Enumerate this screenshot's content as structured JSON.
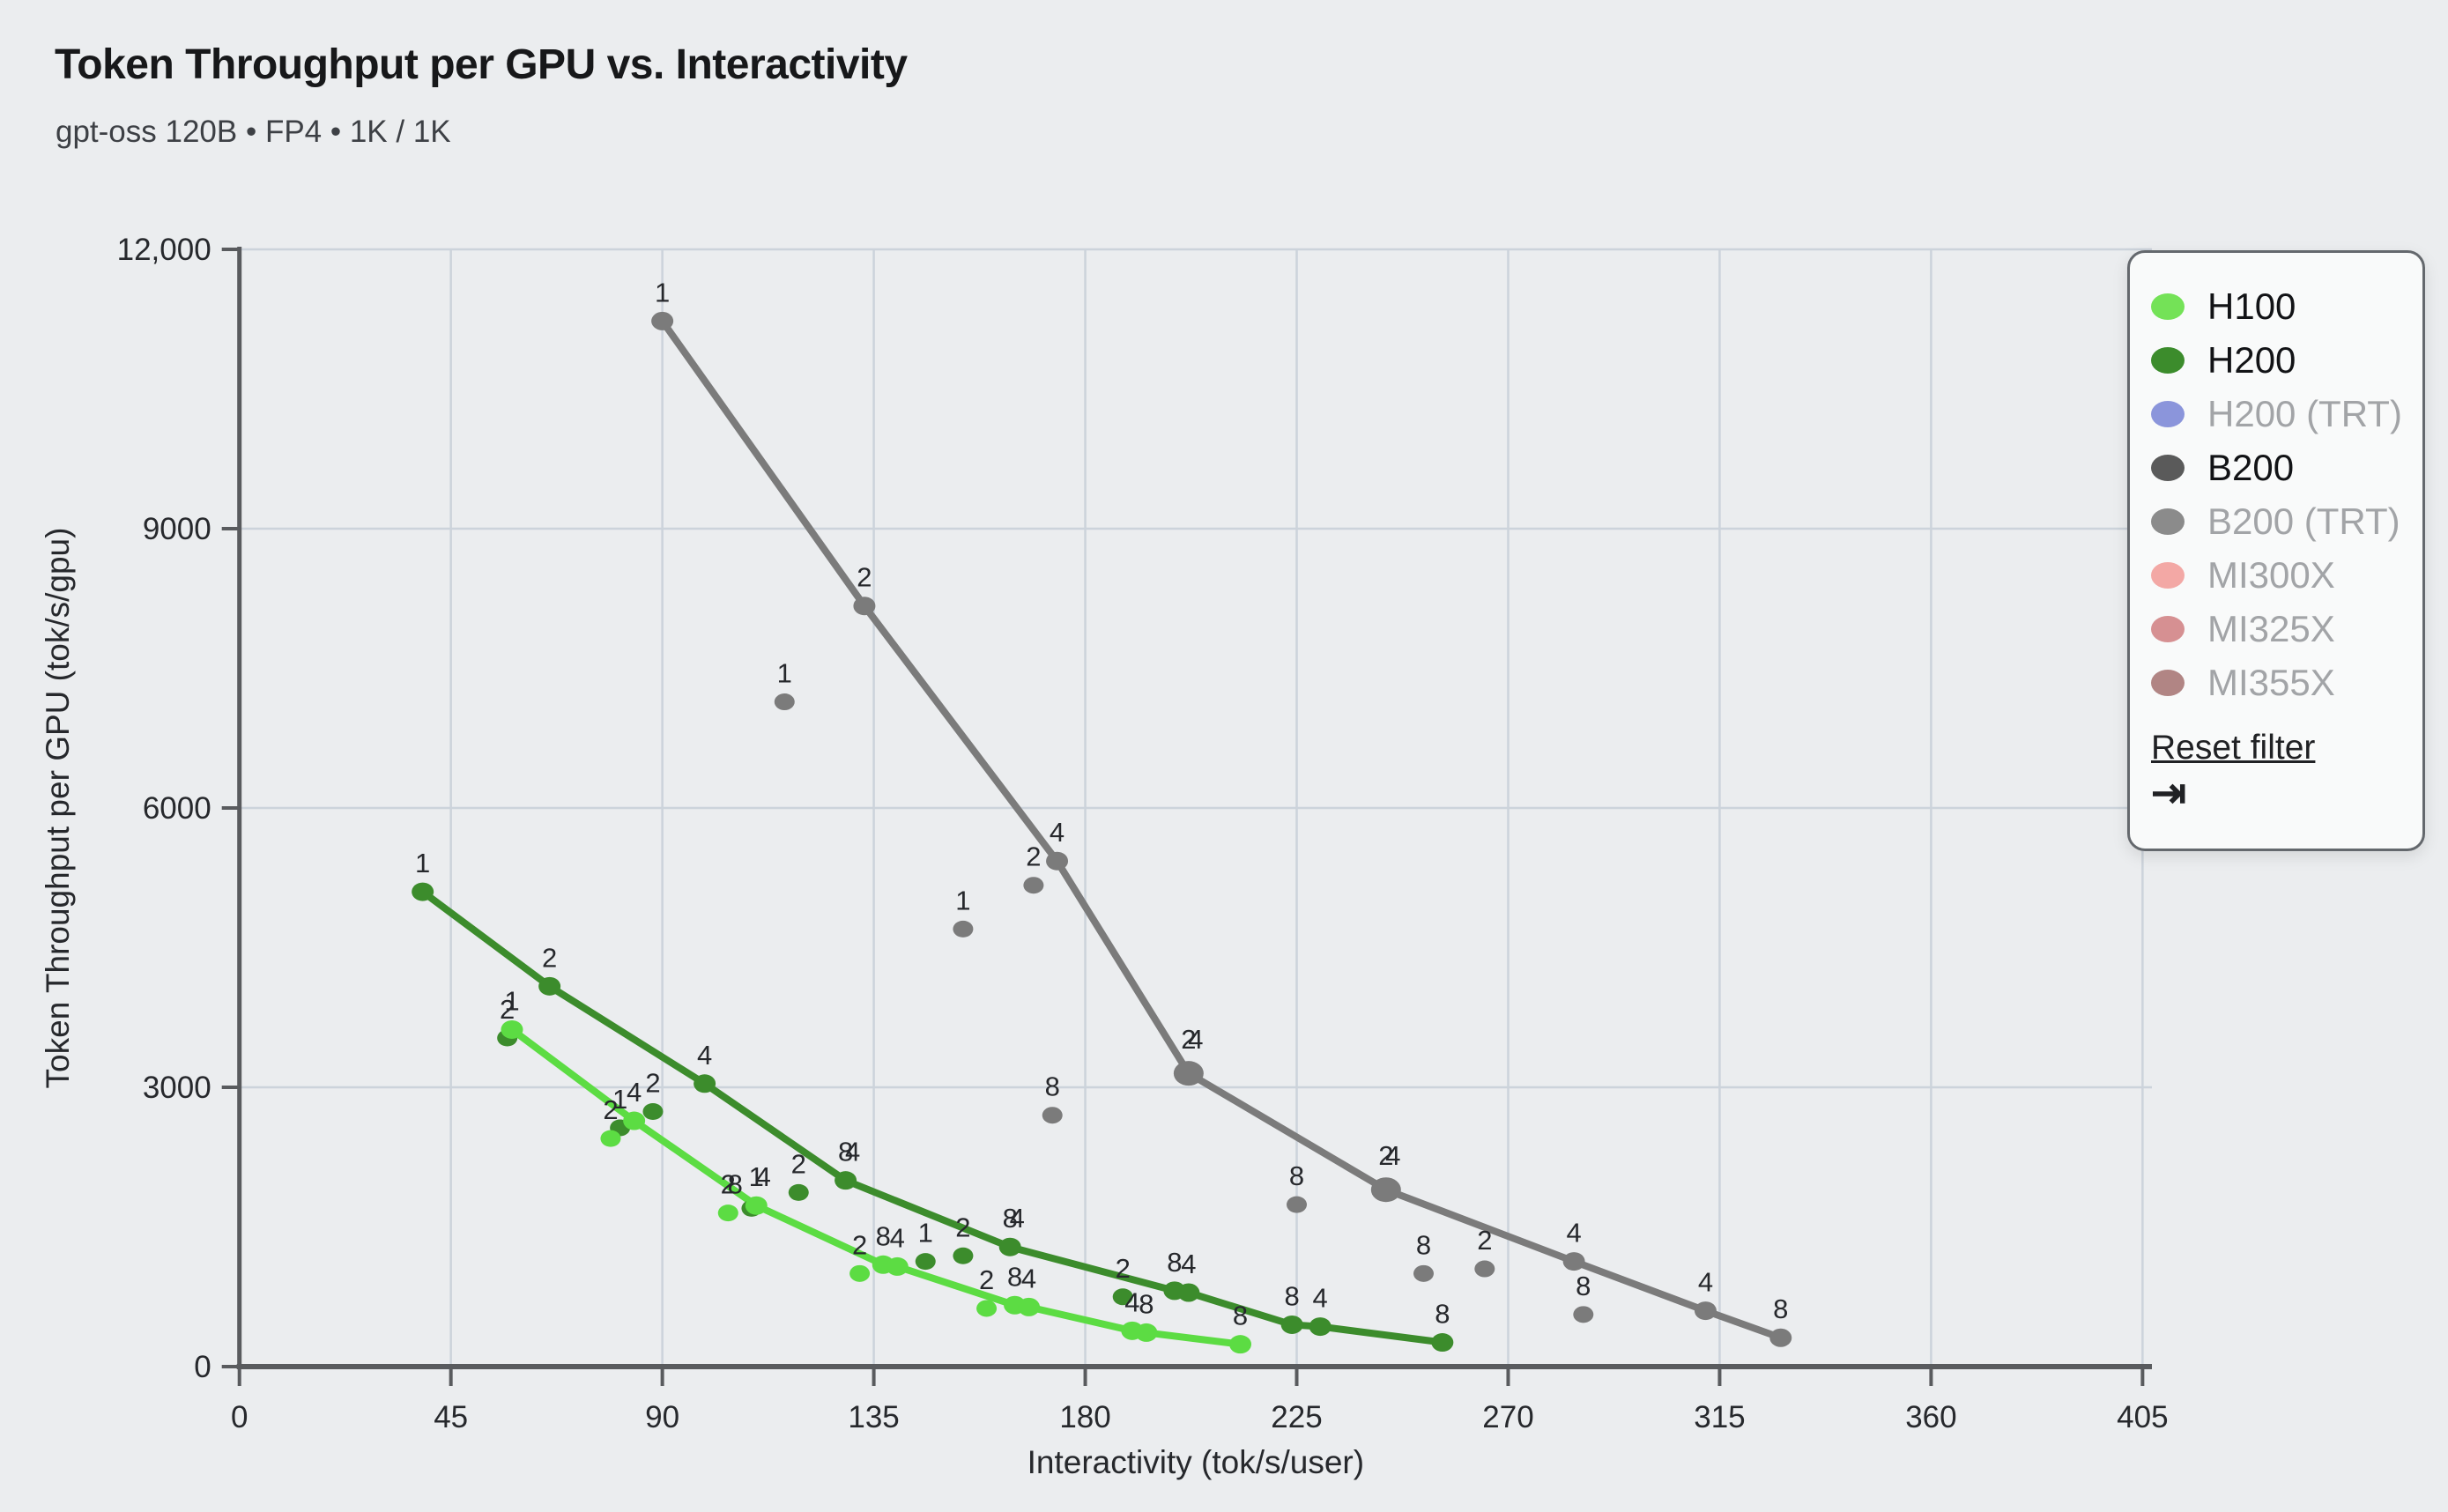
{
  "header": {
    "title": "Token Throughput per GPU vs. Interactivity",
    "subtitle": "gpt-oss 120B • FP4 • 1K / 1K"
  },
  "legend": {
    "items": [
      {
        "label": "H100",
        "color": "#74e257",
        "active": true
      },
      {
        "label": "H200",
        "color": "#3c8c2c",
        "active": true
      },
      {
        "label": "H200 (TRT)",
        "color": "#8b95db",
        "active": false
      },
      {
        "label": "B200",
        "color": "#5a5a5a",
        "active": true
      },
      {
        "label": "B200 (TRT)",
        "color": "#8b8b8b",
        "active": false
      },
      {
        "label": "MI300X",
        "color": "#f3a8a5",
        "active": false
      },
      {
        "label": "MI325X",
        "color": "#d69092",
        "active": false
      },
      {
        "label": "MI355X",
        "color": "#b18584",
        "active": false
      }
    ],
    "reset_label": "Reset filter",
    "collapse_icon": "⇥"
  },
  "chart_data": {
    "type": "scatter",
    "title": "Token Throughput per GPU vs. Interactivity",
    "xlabel": "Interactivity (tok/s/user)",
    "ylabel": "Token Throughput per GPU (tok/s/gpu)",
    "xlim": [
      0,
      418
    ],
    "ylim": [
      0,
      12000
    ],
    "x_ticks": [
      {
        "v": 0,
        "label": "0"
      },
      {
        "v": 45,
        "label": "45"
      },
      {
        "v": 90,
        "label": "90"
      },
      {
        "v": 135,
        "label": "135"
      },
      {
        "v": 180,
        "label": "180"
      },
      {
        "v": 225,
        "label": "225"
      },
      {
        "v": 270,
        "label": "270"
      },
      {
        "v": 315,
        "label": "315"
      },
      {
        "v": 360,
        "label": "360"
      },
      {
        "v": 405,
        "label": "405"
      }
    ],
    "y_ticks": [
      {
        "v": 0,
        "label": "0"
      },
      {
        "v": 3000,
        "label": "3000"
      },
      {
        "v": 6000,
        "label": "6000"
      },
      {
        "v": 9000,
        "label": "9000"
      },
      {
        "v": 12000,
        "label": "12,000"
      }
    ],
    "grid": true,
    "legend_position": "top-right",
    "point_label_meaning": "number of GPUs / parallelism of config",
    "series": [
      {
        "name": "B200",
        "color": "#7b7b7b",
        "line_points": [
          {
            "x": 90,
            "y": 11230,
            "labels": [
              "1"
            ]
          },
          {
            "x": 133,
            "y": 8170,
            "labels": [
              "2"
            ]
          },
          {
            "x": 174,
            "y": 5430,
            "labels": [
              "4"
            ]
          },
          {
            "x": 202,
            "y": 3150,
            "labels": [
              "2",
              "4"
            ],
            "big": true
          },
          {
            "x": 244,
            "y": 1900,
            "labels": [
              "2",
              "4"
            ],
            "big": true
          },
          {
            "x": 284,
            "y": 1130,
            "labels": [
              "4"
            ]
          },
          {
            "x": 312,
            "y": 600,
            "labels": [
              "4"
            ]
          },
          {
            "x": 328,
            "y": 310,
            "labels": [
              "8"
            ]
          }
        ],
        "scatter_points": [
          {
            "x": 116,
            "y": 7140,
            "labels": [
              "1"
            ]
          },
          {
            "x": 154,
            "y": 4700,
            "labels": [
              "1"
            ]
          },
          {
            "x": 169,
            "y": 5170,
            "labels": [
              "2"
            ]
          },
          {
            "x": 173,
            "y": 2700,
            "labels": [
              "8"
            ]
          },
          {
            "x": 225,
            "y": 1740,
            "labels": [
              "8"
            ]
          },
          {
            "x": 252,
            "y": 1000,
            "labels": [
              "8"
            ]
          },
          {
            "x": 265,
            "y": 1050,
            "labels": [
              "2"
            ]
          },
          {
            "x": 286,
            "y": 560,
            "labels": [
              "8"
            ]
          }
        ]
      },
      {
        "name": "H200",
        "color": "#3c8c2c",
        "line_points": [
          {
            "x": 39,
            "y": 5100,
            "labels": [
              "1"
            ]
          },
          {
            "x": 66,
            "y": 4085,
            "labels": [
              "2"
            ]
          },
          {
            "x": 99,
            "y": 3040,
            "labels": [
              "4"
            ]
          },
          {
            "x": 129,
            "y": 2000,
            "labels": [
              "8",
              "4"
            ]
          },
          {
            "x": 164,
            "y": 1285,
            "labels": [
              "8",
              "4"
            ]
          },
          {
            "x": 199,
            "y": 815,
            "labels": [
              "8"
            ]
          },
          {
            "x": 202,
            "y": 795,
            "labels": [
              "4"
            ]
          },
          {
            "x": 224,
            "y": 450,
            "labels": [
              "8"
            ]
          },
          {
            "x": 230,
            "y": 430,
            "labels": [
              "4"
            ]
          },
          {
            "x": 256,
            "y": 260,
            "labels": [
              "8"
            ]
          }
        ],
        "scatter_points": [
          {
            "x": 57,
            "y": 3530,
            "labels": [
              "2"
            ]
          },
          {
            "x": 81,
            "y": 2565,
            "labels": [
              "1"
            ]
          },
          {
            "x": 88,
            "y": 2740,
            "labels": [
              "2"
            ]
          },
          {
            "x": 109,
            "y": 1700,
            "labels": []
          },
          {
            "x": 119,
            "y": 1870,
            "labels": [
              "2"
            ]
          },
          {
            "x": 146,
            "y": 1130,
            "labels": [
              "1"
            ]
          },
          {
            "x": 154,
            "y": 1190,
            "labels": [
              "2"
            ]
          },
          {
            "x": 188,
            "y": 750,
            "labels": [
              "2"
            ]
          }
        ]
      },
      {
        "name": "H100",
        "color": "#5cdc43",
        "line_points": [
          {
            "x": 58,
            "y": 3620,
            "labels": [
              "1"
            ]
          },
          {
            "x": 84,
            "y": 2640,
            "labels": [
              "4"
            ]
          },
          {
            "x": 110,
            "y": 1730,
            "labels": [
              "1",
              "4"
            ]
          },
          {
            "x": 137,
            "y": 1095,
            "labels": [
              "8"
            ]
          },
          {
            "x": 140,
            "y": 1075,
            "labels": [
              "4"
            ]
          },
          {
            "x": 165,
            "y": 660,
            "labels": [
              "8"
            ]
          },
          {
            "x": 168,
            "y": 640,
            "labels": [
              "4"
            ]
          },
          {
            "x": 190,
            "y": 385,
            "labels": [
              "4"
            ]
          },
          {
            "x": 193,
            "y": 365,
            "labels": [
              "8"
            ]
          },
          {
            "x": 213,
            "y": 240,
            "labels": [
              "8"
            ]
          }
        ],
        "scatter_points": [
          {
            "x": 79,
            "y": 2450,
            "labels": [
              "2"
            ]
          },
          {
            "x": 104,
            "y": 1650,
            "labels": [
              "2",
              "8"
            ]
          },
          {
            "x": 132,
            "y": 1000,
            "labels": [
              "2"
            ]
          },
          {
            "x": 159,
            "y": 625,
            "labels": [
              "2"
            ]
          }
        ]
      }
    ]
  }
}
